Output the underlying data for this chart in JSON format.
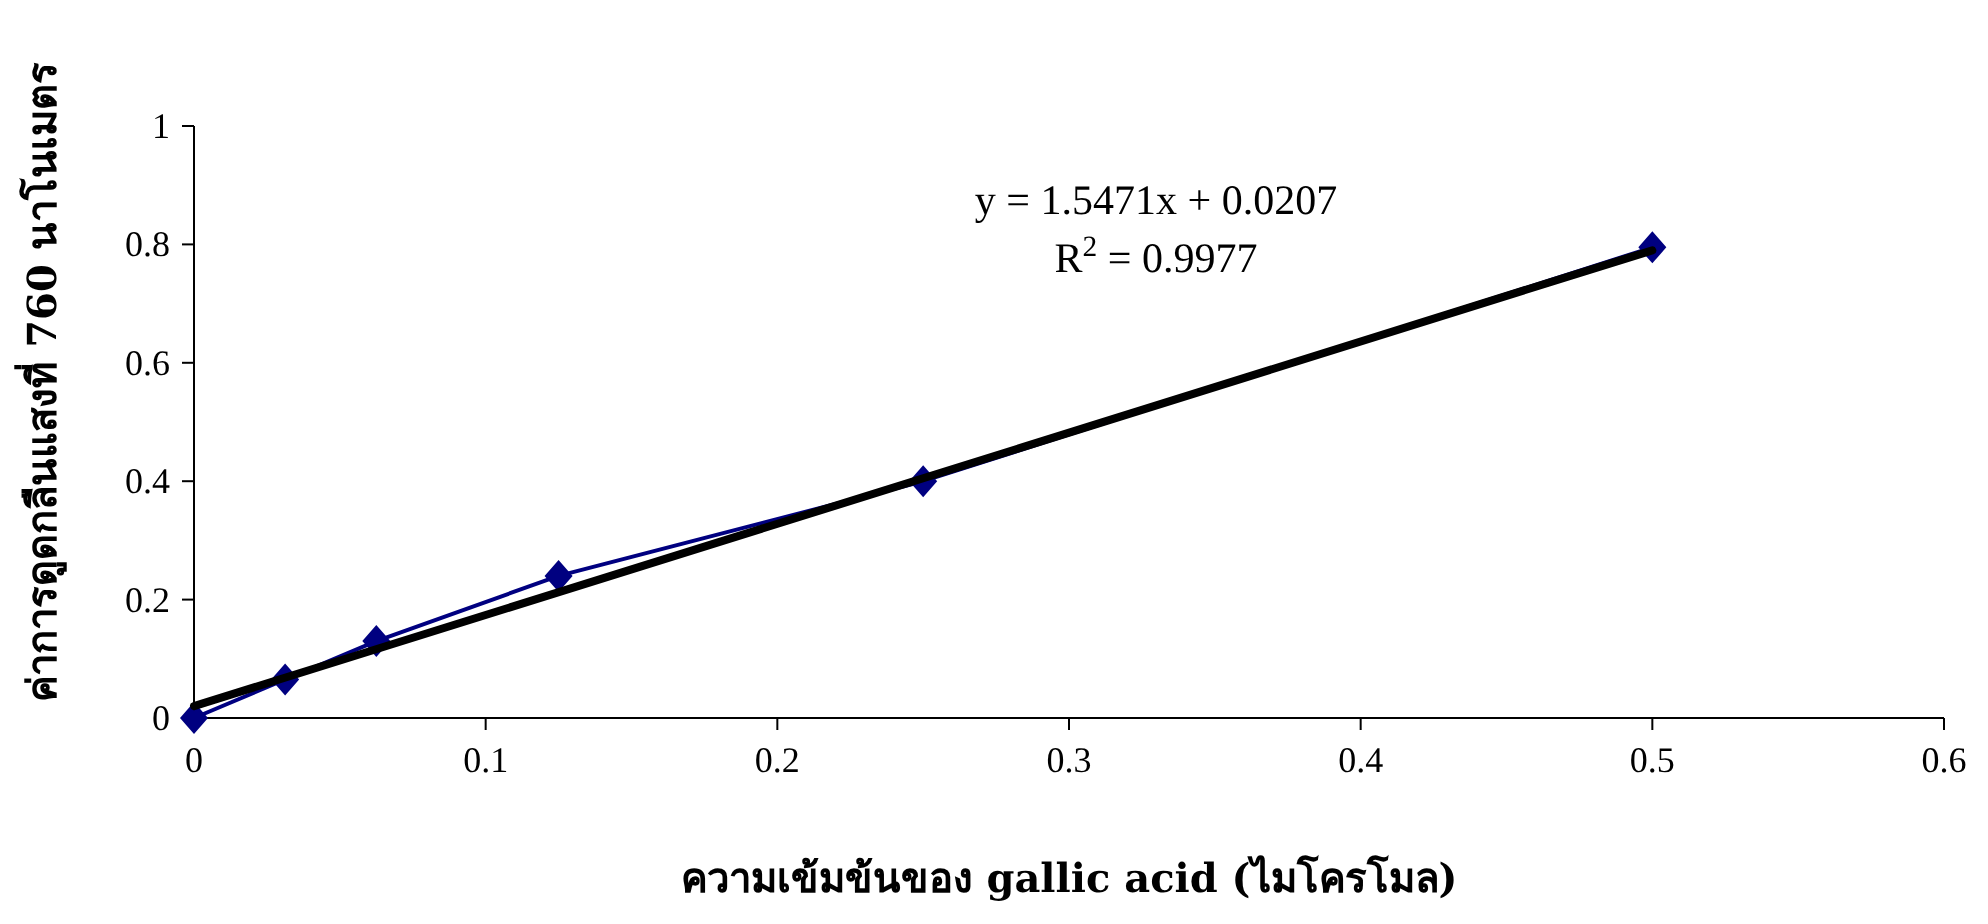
{
  "chart_data": {
    "type": "line",
    "xlabel": "ความเข้มข้นของ gallic acid (ไมโครโมล)",
    "ylabel": "ค่าการดูดกลืนแสงที่ 760 นาโนเมตร",
    "annotations": [
      "y = 1.5471x + 0.0207",
      "R$^{2}$ = 0.9977"
    ],
    "xlim": [
      0,
      0.6
    ],
    "xticks": [
      0,
      0.1,
      0.2,
      0.3,
      0.4,
      0.5,
      0.6
    ],
    "ylim": [
      0,
      1
    ],
    "yticks": [
      0,
      0.2,
      0.4,
      0.6,
      0.8,
      1
    ],
    "series": [
      {
        "color": "#000080",
        "marker": "diamond",
        "line_style": "solid",
        "x": [
          0,
          0.03125,
          0.0625,
          0.125,
          0.25,
          0.5
        ],
        "values": [
          0,
          0.065,
          0.13,
          0.24,
          0.4,
          0.795
        ]
      },
      {
        "color": "#000000",
        "marker": "none",
        "line_style": "solid",
        "x": [
          0,
          0.5
        ],
        "values": [
          0.02,
          0.79
        ]
      }
    ]
  }
}
